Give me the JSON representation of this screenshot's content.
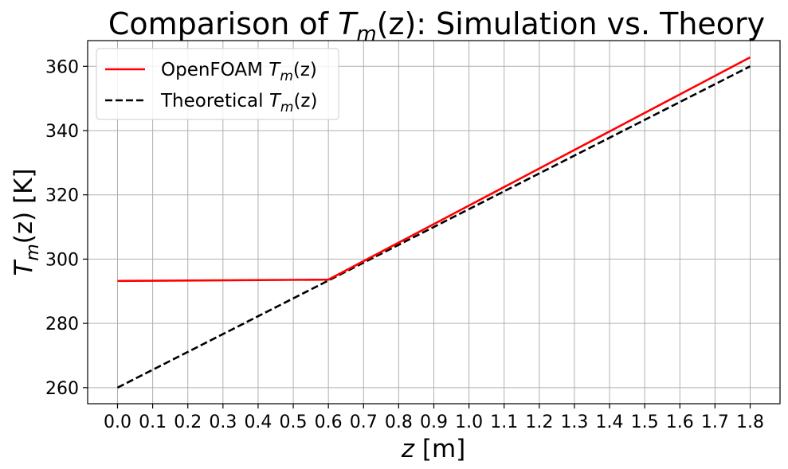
{
  "chart_data": {
    "type": "line",
    "title_parts": {
      "prefix": "Comparison of ",
      "var": "T",
      "sub": "m",
      "arg": "(z)",
      "suffix": ": Simulation vs. Theory"
    },
    "xlabel_parts": {
      "var": "z",
      "unit": " [m]"
    },
    "ylabel_parts": {
      "var": "T",
      "sub": "m",
      "arg": "(z)",
      "unit": " [K]"
    },
    "xlim": [
      -0.085,
      1.885
    ],
    "ylim": [
      255,
      368
    ],
    "xticks": [
      "0.0",
      "0.1",
      "0.2",
      "0.3",
      "0.4",
      "0.5",
      "0.6",
      "0.7",
      "0.8",
      "0.9",
      "1.0",
      "1.1",
      "1.2",
      "1.3",
      "1.4",
      "1.5",
      "1.6",
      "1.7",
      "1.8"
    ],
    "xtick_values": [
      0.0,
      0.1,
      0.2,
      0.3,
      0.4,
      0.5,
      0.6,
      0.7,
      0.8,
      0.9,
      1.0,
      1.1,
      1.2,
      1.3,
      1.4,
      1.5,
      1.6,
      1.7,
      1.8
    ],
    "yticks": [
      "260",
      "280",
      "300",
      "320",
      "340",
      "360"
    ],
    "ytick_values": [
      260,
      280,
      300,
      320,
      340,
      360
    ],
    "grid": true,
    "legend_position": "top-left",
    "series": [
      {
        "name_parts": {
          "prefix": "OpenFOAM ",
          "var": "T",
          "sub": "m",
          "arg": "(z)"
        },
        "color": "#ff0000",
        "style": "solid",
        "x": [
          0.0,
          0.6,
          1.8
        ],
        "y": [
          293.2,
          293.6,
          362.8
        ]
      },
      {
        "name_parts": {
          "prefix": "Theoretical ",
          "var": "T",
          "sub": "m",
          "arg": "(z)"
        },
        "color": "#000000",
        "style": "dashed",
        "x": [
          0.0,
          1.8
        ],
        "y": [
          260.0,
          360.0
        ]
      }
    ]
  }
}
